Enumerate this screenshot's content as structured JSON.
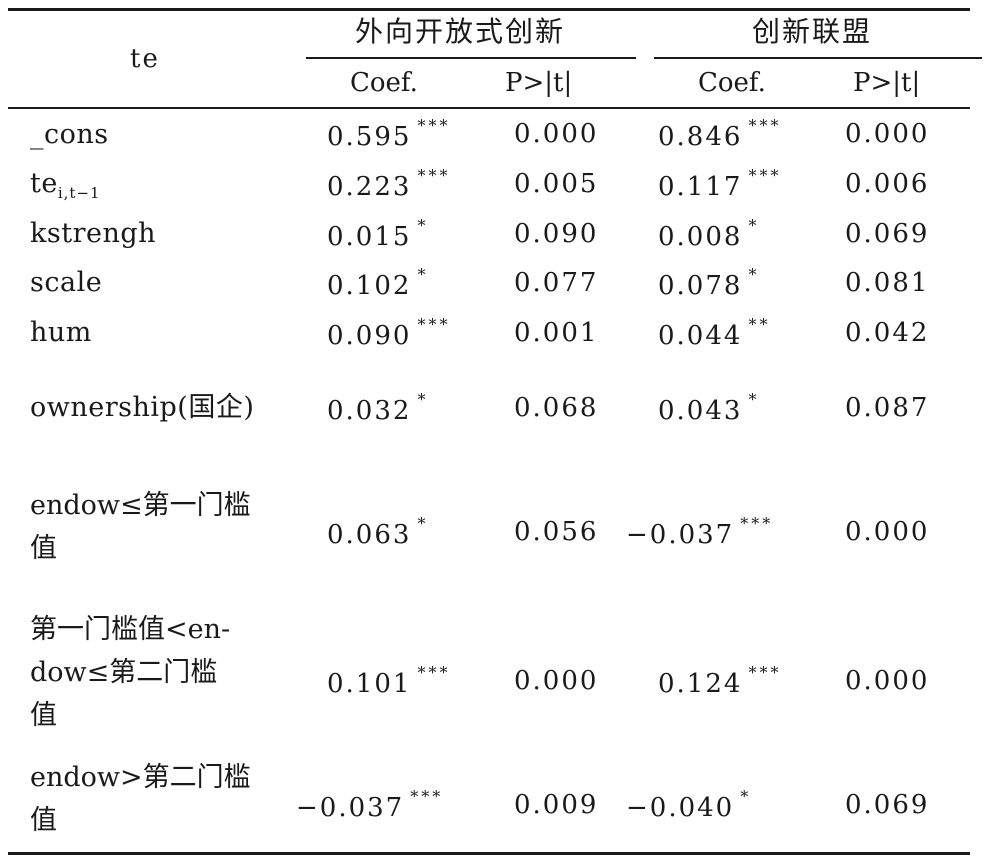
{
  "header": {
    "row_label": "te",
    "group1": "外向开放式创新",
    "group2": "创新联盟",
    "coef": "Coef.",
    "p": "P>|t|"
  },
  "rows": [
    {
      "label": "_cons",
      "c1": "0.595",
      "s1": "***",
      "p1": "0.000",
      "c2": "0.846",
      "s2": "***",
      "p2": "0.000"
    },
    {
      "label": "te",
      "label_sub": "i,t−1",
      "c1": "0.223",
      "s1": "***",
      "p1": "0.005",
      "c2": "0.117",
      "s2": "***",
      "p2": "0.006"
    },
    {
      "label": "kstrengh",
      "c1": "0.015",
      "s1": "*",
      "p1": "0.090",
      "c2": "0.008",
      "s2": "*",
      "p2": "0.069"
    },
    {
      "label": "scale",
      "c1": "0.102",
      "s1": "*",
      "p1": "0.077",
      "c2": "0.078",
      "s2": "*",
      "p2": "0.081"
    },
    {
      "label": "hum",
      "c1": "0.090",
      "s1": "***",
      "p1": "0.001",
      "c2": "0.044",
      "s2": "**",
      "p2": "0.042"
    },
    {
      "label": "ownership(国企)",
      "c1": "0.032",
      "s1": "*",
      "p1": "0.068",
      "c2": "0.043",
      "s2": "*",
      "p2": "0.087"
    },
    {
      "label_lines": [
        "endow≤第一门槛",
        "值"
      ],
      "c1": "0.063",
      "s1": "*",
      "p1": "0.056",
      "c2": "−0.037",
      "s2": "***",
      "p2": "0.000"
    },
    {
      "label_lines": [
        "第一门槛值<en-",
        "dow≤第二门槛",
        "值"
      ],
      "c1": "0.101",
      "s1": "***",
      "p1": "0.000",
      "c2": "0.124",
      "s2": "***",
      "p2": "0.000"
    },
    {
      "label_lines": [
        "endow>第二门槛",
        "值"
      ],
      "c1": "−0.037",
      "s1": "***",
      "p1": "0.009",
      "c2": "−0.040",
      "s2": "*",
      "p2": "0.069"
    }
  ]
}
